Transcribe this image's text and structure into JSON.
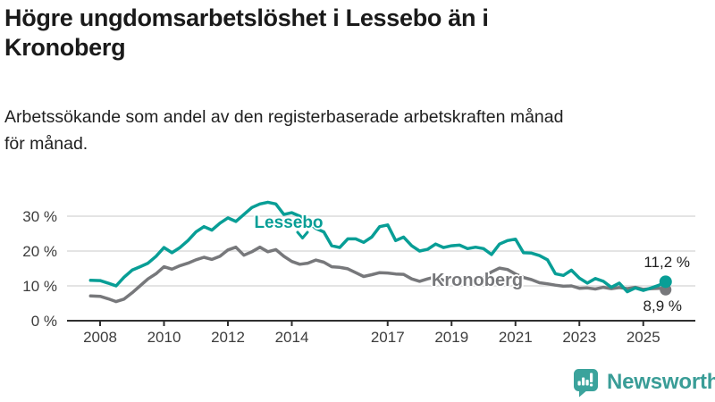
{
  "chart_data": {
    "type": "line",
    "title": "Högre ungdomsarbetslöshet i Lessebo än i Kronoberg",
    "subtitle": "Arbetssökande som andel av den registerbaserade arbetskraften månad för månad.",
    "xlabel": "",
    "ylabel": "",
    "unit": "%",
    "grid": "horizontal",
    "legend_position": "inline-labels",
    "xlim": [
      2007.5,
      2026.3
    ],
    "ylim": [
      0,
      36
    ],
    "y_ticks": [
      {
        "value": 0,
        "label": "0 %"
      },
      {
        "value": 10,
        "label": "10 %"
      },
      {
        "value": 20,
        "label": "20 %"
      },
      {
        "value": 30,
        "label": "30 %"
      }
    ],
    "x_ticks": [
      {
        "value": 2008,
        "label": "2008"
      },
      {
        "value": 2010,
        "label": "2010"
      },
      {
        "value": 2012,
        "label": "2012"
      },
      {
        "value": 2014,
        "label": "2014"
      },
      {
        "value": 2017,
        "label": "2017"
      },
      {
        "value": 2019,
        "label": "2019"
      },
      {
        "value": 2021,
        "label": "2021"
      },
      {
        "value": 2023,
        "label": "2023"
      },
      {
        "value": 2025,
        "label": "2025"
      }
    ],
    "x": [
      2007.7,
      2008,
      2008.25,
      2008.5,
      2008.75,
      2009,
      2009.25,
      2009.5,
      2009.75,
      2010,
      2010.25,
      2010.5,
      2010.75,
      2011,
      2011.25,
      2011.5,
      2011.75,
      2012,
      2012.25,
      2012.5,
      2012.75,
      2013,
      2013.25,
      2013.5,
      2013.75,
      2014,
      2014.25,
      2014.5,
      2014.75,
      2015,
      2015.25,
      2015.5,
      2015.75,
      2016,
      2016.25,
      2016.5,
      2016.75,
      2017,
      2017.25,
      2017.5,
      2017.75,
      2018,
      2018.25,
      2018.5,
      2018.75,
      2019,
      2019.25,
      2019.5,
      2019.75,
      2020,
      2020.25,
      2020.5,
      2020.75,
      2021,
      2021.25,
      2021.5,
      2021.75,
      2022,
      2022.25,
      2022.5,
      2022.75,
      2023,
      2023.25,
      2023.5,
      2023.75,
      2024,
      2024.25,
      2024.5,
      2024.75,
      2025,
      2025.25,
      2025.5,
      2025.7
    ],
    "series": [
      {
        "name": "Lessebo",
        "color": "#089e96",
        "end_label": "11,2 %",
        "end_value": 11.2,
        "values": [
          11.6,
          11.5,
          10.8,
          10.0,
          12.5,
          14.5,
          15.5,
          16.5,
          18.5,
          21.0,
          19.5,
          21.0,
          23.0,
          25.5,
          27.0,
          26.0,
          28.0,
          29.5,
          28.5,
          30.5,
          32.5,
          33.5,
          34.0,
          33.5,
          30.5,
          31.0,
          30.0,
          28.5,
          26.5,
          25.5,
          21.5,
          21.0,
          23.5,
          23.5,
          22.5,
          24.0,
          27.0,
          27.5,
          23.0,
          24.0,
          21.5,
          20.0,
          20.5,
          22.0,
          21.0,
          21.5,
          21.7,
          20.7,
          21.1,
          20.7,
          19.0,
          22.0,
          23.0,
          23.4,
          19.5,
          19.4,
          18.7,
          17.5,
          13.5,
          13.0,
          14.5,
          12.2,
          10.8,
          12.1,
          11.3,
          9.6,
          10.8,
          8.3,
          9.4,
          8.7,
          9.4,
          10.2,
          11.2
        ]
      },
      {
        "name": "Kronoberg",
        "color": "#77787b",
        "end_label": "8,9 %",
        "end_value": 8.9,
        "values": [
          7.1,
          7.0,
          6.3,
          5.5,
          6.2,
          8.0,
          10.0,
          12.0,
          13.5,
          15.5,
          14.8,
          15.8,
          16.5,
          17.5,
          18.2,
          17.6,
          18.5,
          20.3,
          21.1,
          18.8,
          19.8,
          21.1,
          19.8,
          20.4,
          18.5,
          17.0,
          16.2,
          16.5,
          17.4,
          16.8,
          15.5,
          15.3,
          14.9,
          13.8,
          12.7,
          13.2,
          13.8,
          13.7,
          13.4,
          13.3,
          12.0,
          11.3,
          12.0,
          12.6,
          11.6,
          12.1,
          12.3,
          11.8,
          12.0,
          12.3,
          14.0,
          15.1,
          14.7,
          13.4,
          12.4,
          11.8,
          10.9,
          10.6,
          10.2,
          9.9,
          10.0,
          9.3,
          9.4,
          9.1,
          9.6,
          9.2,
          9.5,
          9.2,
          9.6,
          9.0,
          9.2,
          9.3,
          8.9
        ]
      }
    ],
    "axis_color": "#2f2f2f",
    "grid_color": "#dcdcdc",
    "tick_text_color": "#3d3d3d"
  },
  "icons": {
    "lessebo_pointer": "chevron-down",
    "logo": "speech-bubble-bar-chart"
  },
  "footer": {
    "brand": "Newsworthy",
    "brand_color": "#3a9d97"
  }
}
